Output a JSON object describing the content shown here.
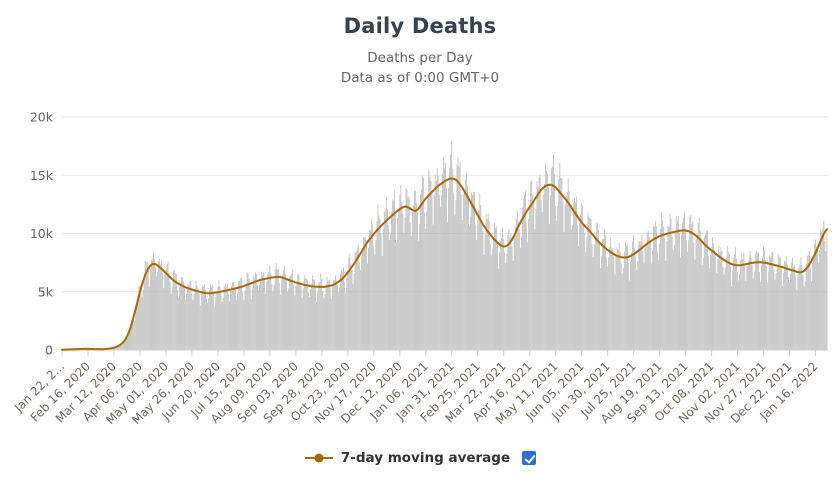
{
  "header": {
    "title": "Daily Deaths",
    "subtitle1": "Deaths per Day",
    "subtitle2": "Data as of 0:00 GMT+0"
  },
  "legend": {
    "label": "7-day moving average",
    "checkbox_checked": true
  },
  "chart_data": {
    "type": "bar",
    "title": "Daily Deaths",
    "subtitle": [
      "Deaths per Day",
      "Data as of 0:00 GMT+0"
    ],
    "xlabel": "",
    "ylabel": "",
    "ylim": [
      0,
      20000
    ],
    "yticks": [
      0,
      5000,
      10000,
      15000,
      20000
    ],
    "ytick_labels": [
      "0",
      "5k",
      "10k",
      "15k",
      "20k"
    ],
    "grid": "horizontal",
    "legend_position": "bottom-center",
    "x_tick_interval_days": 25,
    "total_days": 737,
    "x_tick_labels": [
      "Jan 22, 2...",
      "Feb 16, 2020",
      "Mar 12, 2020",
      "Apr 06, 2020",
      "May 01, 2020",
      "May 26, 2020",
      "Jun 20, 2020",
      "Jul 15, 2020",
      "Aug 09, 2020",
      "Sep 03, 2020",
      "Sep 28, 2020",
      "Oct 23, 2020",
      "Nov 17, 2020",
      "Dec 12, 2020",
      "Jan 06, 2021",
      "Jan 31, 2021",
      "Feb 25, 2021",
      "Mar 22, 2021",
      "Apr 16, 2021",
      "May 11, 2021",
      "Jun 05, 2021",
      "Jun 30, 2021",
      "Jul 25, 2021",
      "Aug 19, 2021",
      "Sep 13, 2021",
      "Oct 08, 2021",
      "Nov 02, 2021",
      "Nov 27, 2021",
      "Dec 22, 2021",
      "Jan 16, 2022"
    ],
    "bar_color": "#b3b3b3",
    "line_color": "#aa6708",
    "series": [
      {
        "name": "Daily Deaths",
        "type": "bar",
        "note": "daily bars oscillate weekly around the 7-day moving average; reconstructed as moving_average * weekly_factors * (1 +/- noise_amplitude)"
      },
      {
        "name": "7-day moving average",
        "type": "line",
        "points_format": "[day_index_from_Jan_22_2020, deaths]",
        "control_points": [
          [
            0,
            20
          ],
          [
            15,
            70
          ],
          [
            22,
            110
          ],
          [
            30,
            80
          ],
          [
            40,
            60
          ],
          [
            50,
            180
          ],
          [
            57,
            450
          ],
          [
            63,
            1100
          ],
          [
            68,
            2500
          ],
          [
            73,
            4300
          ],
          [
            78,
            6000
          ],
          [
            83,
            7100
          ],
          [
            88,
            7500
          ],
          [
            93,
            7200
          ],
          [
            100,
            6600
          ],
          [
            108,
            5900
          ],
          [
            118,
            5400
          ],
          [
            128,
            5100
          ],
          [
            140,
            4850
          ],
          [
            150,
            4950
          ],
          [
            160,
            5150
          ],
          [
            170,
            5350
          ],
          [
            180,
            5650
          ],
          [
            190,
            6000
          ],
          [
            200,
            6200
          ],
          [
            210,
            6300
          ],
          [
            220,
            5950
          ],
          [
            230,
            5650
          ],
          [
            242,
            5450
          ],
          [
            252,
            5400
          ],
          [
            262,
            5600
          ],
          [
            270,
            6100
          ],
          [
            278,
            7000
          ],
          [
            286,
            8100
          ],
          [
            294,
            9300
          ],
          [
            302,
            10200
          ],
          [
            312,
            11100
          ],
          [
            322,
            11900
          ],
          [
            330,
            12400
          ],
          [
            336,
            12100
          ],
          [
            341,
            11800
          ],
          [
            347,
            12700
          ],
          [
            354,
            13400
          ],
          [
            362,
            14100
          ],
          [
            370,
            14600
          ],
          [
            376,
            14800
          ],
          [
            382,
            14400
          ],
          [
            390,
            13200
          ],
          [
            398,
            11900
          ],
          [
            406,
            10600
          ],
          [
            414,
            9700
          ],
          [
            421,
            9000
          ],
          [
            427,
            8800
          ],
          [
            433,
            9400
          ],
          [
            440,
            10800
          ],
          [
            447,
            11900
          ],
          [
            454,
            12800
          ],
          [
            461,
            13800
          ],
          [
            468,
            14250
          ],
          [
            474,
            14100
          ],
          [
            480,
            13400
          ],
          [
            487,
            12700
          ],
          [
            494,
            11700
          ],
          [
            501,
            10800
          ],
          [
            508,
            10200
          ],
          [
            515,
            9400
          ],
          [
            522,
            8800
          ],
          [
            529,
            8300
          ],
          [
            536,
            8000
          ],
          [
            543,
            7900
          ],
          [
            550,
            8200
          ],
          [
            557,
            8700
          ],
          [
            564,
            9200
          ],
          [
            571,
            9600
          ],
          [
            578,
            9900
          ],
          [
            585,
            10050
          ],
          [
            592,
            10200
          ],
          [
            599,
            10300
          ],
          [
            606,
            10100
          ],
          [
            613,
            9600
          ],
          [
            620,
            8900
          ],
          [
            627,
            8400
          ],
          [
            634,
            7900
          ],
          [
            641,
            7500
          ],
          [
            648,
            7250
          ],
          [
            655,
            7300
          ],
          [
            662,
            7450
          ],
          [
            669,
            7550
          ],
          [
            676,
            7500
          ],
          [
            683,
            7350
          ],
          [
            690,
            7200
          ],
          [
            697,
            7000
          ],
          [
            704,
            6800
          ],
          [
            711,
            6600
          ],
          [
            716,
            6900
          ],
          [
            721,
            7600
          ],
          [
            726,
            8500
          ],
          [
            730,
            9400
          ],
          [
            734,
            10200
          ],
          [
            736,
            10500
          ]
        ]
      }
    ],
    "weekly_factors": [
      0.8,
      0.93,
      1.06,
      1.12,
      1.13,
      1.09,
      0.95
    ],
    "noise_amplitude": 0.04
  }
}
